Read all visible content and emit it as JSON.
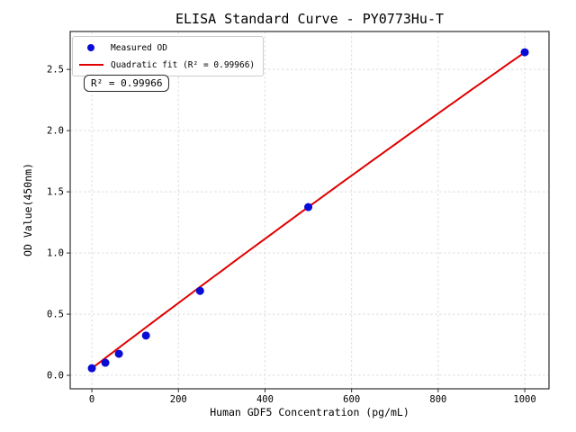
{
  "chart_data": {
    "type": "scatter",
    "title": "ELISA Standard Curve - PY0773Hu-T",
    "xlabel": "Human GDF5 Concentration (pg/mL)",
    "ylabel": "OD Value(450nm)",
    "annotation": "R² = 0.99966",
    "xlim": [
      -50,
      1056
    ],
    "ylim": [
      -0.11,
      2.81
    ],
    "xticks": [
      0,
      200,
      400,
      600,
      800,
      1000
    ],
    "xtick_labels": [
      "0",
      "200",
      "400",
      "600",
      "800",
      "1000"
    ],
    "yticks": [
      0,
      0.5,
      1.0,
      1.5,
      2.0,
      2.5
    ],
    "ytick_labels": [
      "0.0",
      "0.5",
      "1.0",
      "1.5",
      "2.0",
      "2.5"
    ],
    "grid": true,
    "grid_color": "#dcdcdc",
    "legend_position": "upper left",
    "series": [
      {
        "name": "Measured OD",
        "type": "scatter",
        "color": "#0b0bd6",
        "x": [
          0,
          31.2,
          62.5,
          125,
          250,
          500,
          1000
        ],
        "y": [
          0.058,
          0.103,
          0.176,
          0.325,
          0.69,
          1.375,
          2.64
        ]
      },
      {
        "name": "Quadratic fit (R² = 0.99966)",
        "type": "line",
        "color": "#e00000",
        "r_squared": 0.99966,
        "fit": {
          "a": 0.058,
          "b": 0.002686,
          "c": -1.04e-07,
          "x_range": [
            0,
            1000
          ]
        }
      }
    ]
  }
}
